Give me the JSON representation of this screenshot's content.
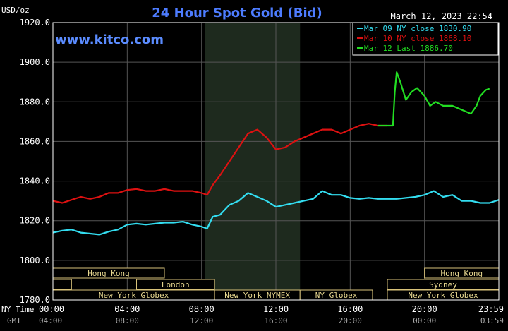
{
  "chart_data": {
    "type": "line",
    "title": "24 Hour Spot Gold (Bid)",
    "ylabel": "USD/oz",
    "timestamp": "March 12, 2023 22:54",
    "watermark": "www.kitco.com",
    "ylim": [
      1780,
      1920
    ],
    "xlim_hours": [
      0,
      24
    ],
    "y_ticks": [
      "1920.0",
      "1900.0",
      "1880.0",
      "1860.0",
      "1840.0",
      "1820.0",
      "1800.0",
      "1780.0"
    ],
    "y_tick_values": [
      1920,
      1900,
      1880,
      1860,
      1840,
      1820,
      1800,
      1780
    ],
    "x_tick_hours": [
      0,
      4,
      8,
      12,
      16,
      20,
      24
    ],
    "x_ticks_ny": [
      "00:00",
      "04:00",
      "08:00",
      "12:00",
      "16:00",
      "20:00",
      "23:59"
    ],
    "x_ticks_gmt": [
      "04:00",
      "08:00",
      "12:00",
      "16:00",
      "20:00",
      "00:00",
      "03:59"
    ],
    "x_row_labels": {
      "ny": "NY Time",
      "gmt": "GMT"
    },
    "shaded_session_hours": [
      8.2,
      13.3
    ],
    "grid": true,
    "legend_position": "top-right",
    "series": [
      {
        "name": "Mar 09 NY close 1830.90",
        "color": "#33ddf0",
        "points": [
          [
            0,
            1814
          ],
          [
            0.5,
            1815
          ],
          [
            1,
            1815.5
          ],
          [
            1.5,
            1814
          ],
          [
            2,
            1813.5
          ],
          [
            2.5,
            1813
          ],
          [
            3,
            1814.5
          ],
          [
            3.5,
            1815.5
          ],
          [
            4,
            1818
          ],
          [
            4.5,
            1818.5
          ],
          [
            5,
            1818
          ],
          [
            5.5,
            1818.5
          ],
          [
            6,
            1819
          ],
          [
            6.5,
            1819
          ],
          [
            7,
            1819.5
          ],
          [
            7.5,
            1818
          ],
          [
            8,
            1817
          ],
          [
            8.3,
            1816
          ],
          [
            8.6,
            1822
          ],
          [
            9,
            1823
          ],
          [
            9.5,
            1828
          ],
          [
            10,
            1830
          ],
          [
            10.5,
            1834
          ],
          [
            11,
            1832
          ],
          [
            11.5,
            1830
          ],
          [
            12,
            1827
          ],
          [
            12.5,
            1828
          ],
          [
            13,
            1829
          ],
          [
            13.5,
            1830
          ],
          [
            14,
            1831
          ],
          [
            14.5,
            1835
          ],
          [
            15,
            1833
          ],
          [
            15.5,
            1833
          ],
          [
            16,
            1831.5
          ],
          [
            16.5,
            1831
          ],
          [
            17,
            1831.5
          ],
          [
            17.5,
            1831
          ],
          [
            18,
            1831
          ],
          [
            18.5,
            1831
          ],
          [
            19,
            1831.5
          ],
          [
            19.5,
            1832
          ],
          [
            20,
            1833
          ],
          [
            20.5,
            1835
          ],
          [
            21,
            1832
          ],
          [
            21.5,
            1833
          ],
          [
            22,
            1830
          ],
          [
            22.5,
            1830
          ],
          [
            23,
            1829
          ],
          [
            23.5,
            1829
          ],
          [
            24,
            1830.5
          ]
        ]
      },
      {
        "name": "Mar 10 NY close 1868.10",
        "color": "#dd1111",
        "points": [
          [
            0,
            1830
          ],
          [
            0.5,
            1829
          ],
          [
            1,
            1830.5
          ],
          [
            1.5,
            1832
          ],
          [
            2,
            1831
          ],
          [
            2.5,
            1832
          ],
          [
            3,
            1834
          ],
          [
            3.5,
            1834
          ],
          [
            4,
            1835.5
          ],
          [
            4.5,
            1836
          ],
          [
            5,
            1835
          ],
          [
            5.5,
            1835
          ],
          [
            6,
            1836
          ],
          [
            6.5,
            1835
          ],
          [
            7,
            1835
          ],
          [
            7.5,
            1835
          ],
          [
            8,
            1834
          ],
          [
            8.3,
            1833
          ],
          [
            8.6,
            1838
          ],
          [
            9,
            1843
          ],
          [
            9.5,
            1850
          ],
          [
            10,
            1857
          ],
          [
            10.5,
            1864
          ],
          [
            11,
            1866
          ],
          [
            11.5,
            1862
          ],
          [
            12,
            1856
          ],
          [
            12.5,
            1857
          ],
          [
            13,
            1860
          ],
          [
            13.5,
            1862
          ],
          [
            14,
            1864
          ],
          [
            14.5,
            1866
          ],
          [
            15,
            1866
          ],
          [
            15.5,
            1864
          ],
          [
            16,
            1866
          ],
          [
            16.5,
            1868
          ],
          [
            17,
            1869
          ],
          [
            17.5,
            1868
          ],
          [
            18,
            1868
          ]
        ]
      },
      {
        "name": "Mar 12 Last 1886.70",
        "color": "#22dd22",
        "points": [
          [
            17.5,
            1868
          ],
          [
            18.3,
            1868
          ],
          [
            18.4,
            1885
          ],
          [
            18.5,
            1895
          ],
          [
            18.7,
            1890
          ],
          [
            19,
            1881
          ],
          [
            19.3,
            1885
          ],
          [
            19.6,
            1887
          ],
          [
            20,
            1883
          ],
          [
            20.3,
            1878
          ],
          [
            20.6,
            1880
          ],
          [
            21,
            1878
          ],
          [
            21.5,
            1878
          ],
          [
            22,
            1876
          ],
          [
            22.5,
            1874
          ],
          [
            22.8,
            1878
          ],
          [
            23,
            1883
          ],
          [
            23.3,
            1886
          ],
          [
            23.5,
            1886.7
          ]
        ]
      }
    ],
    "market_sessions": [
      {
        "label": "Hong Kong",
        "row": 0,
        "start": 0,
        "end": 6
      },
      {
        "label": "",
        "row": 1,
        "start": 0,
        "end": 1
      },
      {
        "label": "London",
        "row": 1,
        "start": 4.5,
        "end": 8.7
      },
      {
        "label": "New York Globex",
        "row": 2,
        "start": 0,
        "end": 8.7
      },
      {
        "label": "New York NYMEX",
        "row": 2,
        "start": 8.7,
        "end": 13.3
      },
      {
        "label": "NY Globex",
        "row": 2,
        "start": 13.3,
        "end": 17.2
      },
      {
        "label": "Hong Kong",
        "row": 0,
        "start": 20,
        "end": 24
      },
      {
        "label": "Sydney",
        "row": 1,
        "start": 18,
        "end": 24
      },
      {
        "label": "New York Globex",
        "row": 2,
        "start": 18,
        "end": 24
      }
    ]
  }
}
